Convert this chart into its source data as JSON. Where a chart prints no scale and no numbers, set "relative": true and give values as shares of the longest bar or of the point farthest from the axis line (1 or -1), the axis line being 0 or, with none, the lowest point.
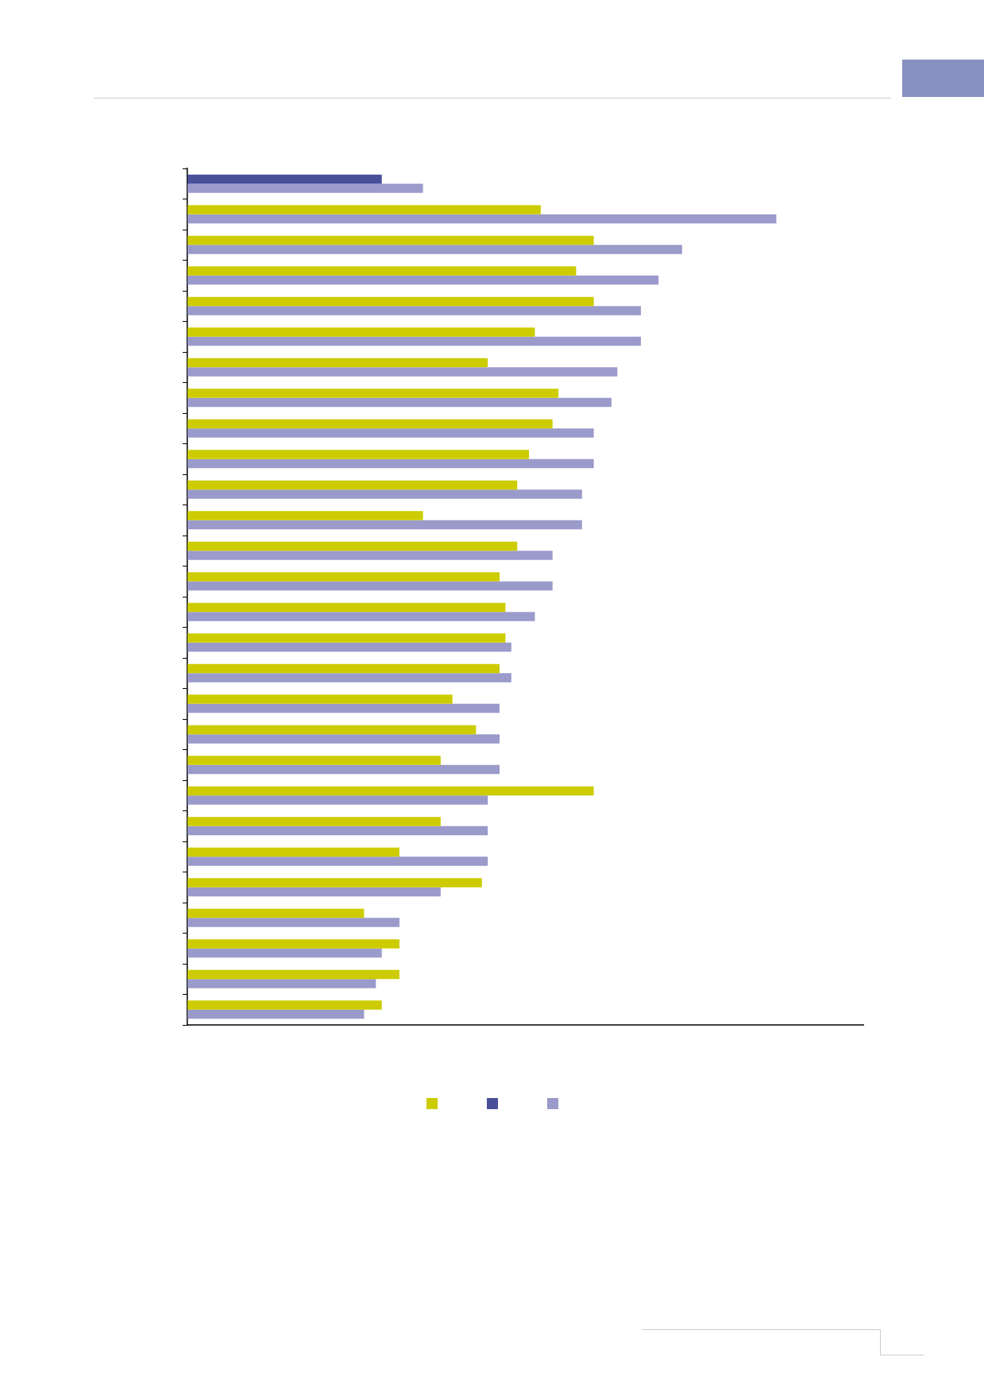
{
  "chart_data": {
    "type": "bar",
    "orientation": "horizontal",
    "relative": true,
    "categories": [
      null,
      null,
      null,
      null,
      null,
      null,
      null,
      null,
      null,
      null,
      null,
      null,
      null,
      null,
      null,
      null,
      null,
      null,
      null,
      null,
      null,
      null,
      null,
      null,
      null,
      null,
      null,
      null
    ],
    "series": [
      {
        "color": "#cccc00",
        "colors": [
          "#4a4f9a",
          "#cccc00",
          "#cccc00",
          "#cccc00",
          "#cccc00",
          "#cccc00",
          "#cccc00",
          "#cccc00",
          "#cccc00",
          "#cccc00",
          "#cccc00",
          "#cccc00",
          "#cccc00",
          "#cccc00",
          "#cccc00",
          "#cccc00",
          "#cccc00",
          "#cccc00",
          "#cccc00",
          "#cccc00",
          "#cccc00",
          "#cccc00",
          "#cccc00",
          "#cccc00",
          "#cccc00",
          "#cccc00",
          "#cccc00",
          "#cccc00"
        ],
        "values": [
          0.33,
          0.6,
          0.69,
          0.66,
          0.69,
          0.59,
          0.51,
          0.63,
          0.62,
          0.58,
          0.56,
          0.4,
          0.56,
          0.53,
          0.54,
          0.54,
          0.53,
          0.45,
          0.49,
          0.43,
          0.69,
          0.43,
          0.36,
          0.5,
          0.3,
          0.36,
          0.36,
          0.33
        ]
      },
      {
        "color": "#9a9acb",
        "values": [
          0.4,
          1,
          0.84,
          0.8,
          0.77,
          0.77,
          0.73,
          0.72,
          0.69,
          0.69,
          0.67,
          0.67,
          0.62,
          0.62,
          0.59,
          0.55,
          0.55,
          0.53,
          0.53,
          0.53,
          0.51,
          0.51,
          0.51,
          0.43,
          0.36,
          0.33,
          0.32,
          0.3
        ]
      }
    ]
  }
}
